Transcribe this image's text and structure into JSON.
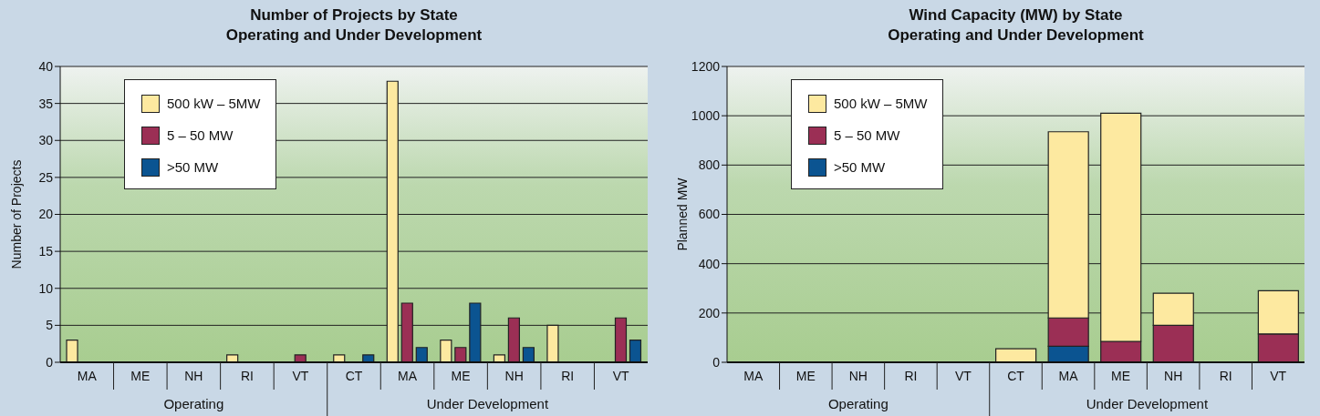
{
  "chart_data": [
    {
      "type": "bar",
      "title": "Number of Projects by State\nOperating and Under Development",
      "ylabel": "Number of Projects",
      "categories": [
        "MA",
        "ME",
        "NH",
        "RI",
        "VT",
        "CT",
        "MA",
        "ME",
        "NH",
        "RI",
        "VT"
      ],
      "series": [
        {
          "name": "500 kW – 5MW",
          "color": "#fde9a0",
          "values": [
            3,
            null,
            null,
            1,
            null,
            1,
            38,
            3,
            1,
            5,
            null
          ]
        },
        {
          "name": "5 – 50 MW",
          "color": "#9b2f55",
          "values": [
            null,
            null,
            null,
            null,
            1,
            null,
            8,
            2,
            6,
            null,
            6
          ]
        },
        {
          "name": ">50 MW",
          "color": "#0b5491",
          "values": [
            null,
            null,
            null,
            null,
            null,
            1,
            2,
            8,
            2,
            null,
            3
          ]
        }
      ],
      "ylim": [
        0,
        40
      ],
      "yticks": [
        0,
        5,
        10,
        15,
        20,
        25,
        30,
        35,
        40
      ],
      "grid": "y",
      "legend": "top left",
      "annotations": [
        "Operating",
        "Under Development"
      ]
    },
    {
      "type": "bar",
      "stacked": true,
      "title": "Wind Capacity (MW) by State\nOperating and Under Development",
      "ylabel": "Planned MW",
      "categories": [
        "MA",
        "ME",
        "NH",
        "RI",
        "VT",
        "CT",
        "MA",
        "ME",
        "NH",
        "RI",
        "VT"
      ],
      "series": [
        {
          "name": ">50 MW",
          "color": "#0b5491",
          "values": [
            null,
            null,
            null,
            null,
            null,
            null,
            65,
            null,
            null,
            null,
            null
          ]
        },
        {
          "name": "5 – 50 MW",
          "color": "#9b2f55",
          "values": [
            null,
            null,
            null,
            null,
            null,
            null,
            115,
            85,
            150,
            null,
            115
          ]
        },
        {
          "name": "500 kW – 5MW",
          "color": "#fde9a0",
          "values": [
            null,
            null,
            null,
            null,
            null,
            55,
            755,
            925,
            130,
            null,
            175
          ]
        }
      ],
      "ylim": [
        0,
        1200
      ],
      "yticks": [
        0,
        200,
        400,
        600,
        800,
        1000,
        1200
      ],
      "grid": "y",
      "legend": "top left",
      "annotations": [
        "Operating",
        "Under Development"
      ]
    }
  ]
}
